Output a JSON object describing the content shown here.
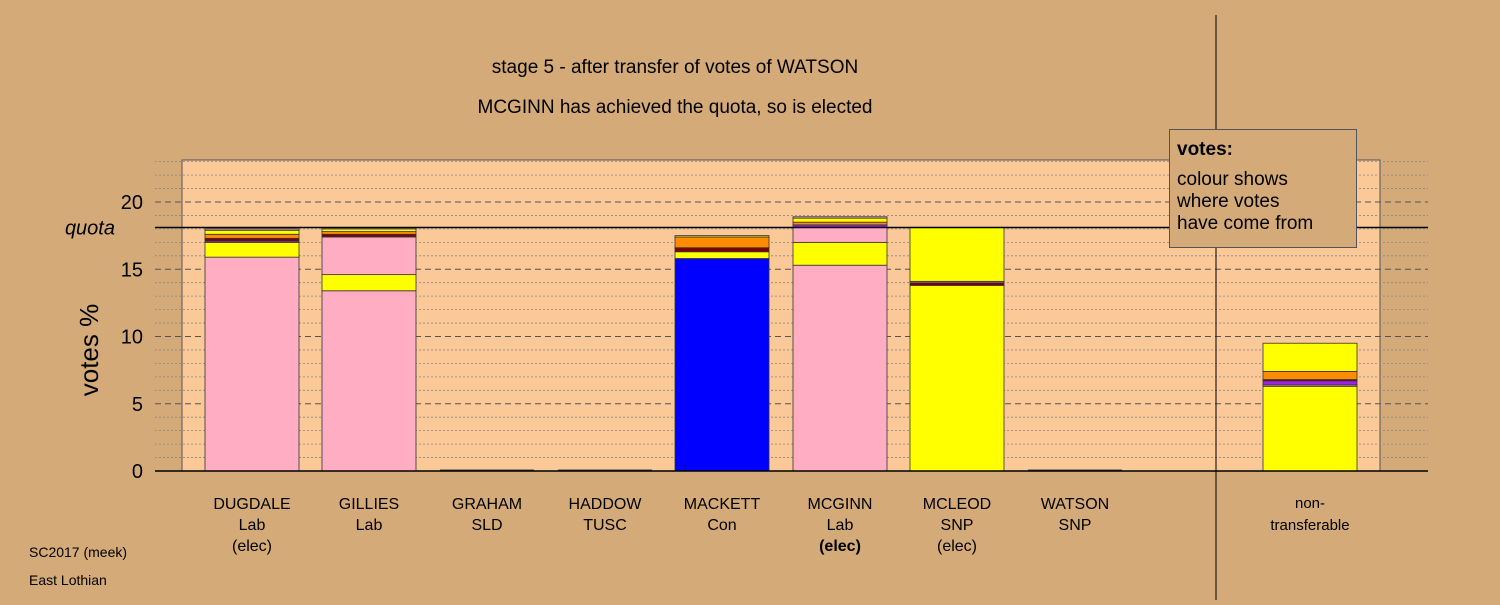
{
  "chart_data": {
    "type": "bar",
    "stacked": true,
    "title": "stage 5 - after transfer of votes of WATSON",
    "subtitle": "MCGINN has achieved the quota, so is elected",
    "xlabel": "",
    "ylabel": "votes %",
    "ylim": [
      0,
      23
    ],
    "yticks": [
      0,
      5,
      10,
      15,
      20
    ],
    "quota": 18.1,
    "quota_label": "quota",
    "grid": true,
    "legend_position": "top-right",
    "legend": {
      "title": "votes:",
      "lines": [
        "colour shows",
        "where votes",
        "have come from"
      ]
    },
    "categories": [
      {
        "name": "DUGDALE",
        "party": "Lab",
        "status": "(elec)",
        "status_bold": false
      },
      {
        "name": "GILLIES",
        "party": "Lab",
        "status": "",
        "status_bold": false
      },
      {
        "name": "GRAHAM",
        "party": "SLD",
        "status": "",
        "status_bold": false
      },
      {
        "name": "HADDOW",
        "party": "TUSC",
        "status": "",
        "status_bold": false
      },
      {
        "name": "MACKETT",
        "party": "Con",
        "status": "",
        "status_bold": false
      },
      {
        "name": "MCGINN",
        "party": "Lab",
        "status": "(elec)",
        "status_bold": true
      },
      {
        "name": "MCLEOD",
        "party": "SNP",
        "status": "(elec)",
        "status_bold": false
      },
      {
        "name": "WATSON",
        "party": "SNP",
        "status": "",
        "status_bold": false
      }
    ],
    "nontransferable": {
      "label_line1": "non-",
      "label_line2": "transferable"
    },
    "bars": [
      [
        {
          "color": "#ffadc3",
          "value": 15.9
        },
        {
          "color": "#ffff00",
          "value": 1.1
        },
        {
          "color": "#a020f0",
          "value": 0.1
        },
        {
          "color": "#800000",
          "value": 0.2
        },
        {
          "color": "#ff8c00",
          "value": 0.3
        },
        {
          "color": "#ffff00",
          "value": 0.3
        },
        {
          "color": "#ffadc3",
          "value": 0.1
        }
      ],
      [
        {
          "color": "#ffadc3",
          "value": 13.4
        },
        {
          "color": "#ffff00",
          "value": 1.2
        },
        {
          "color": "#ffadc3",
          "value": 2.8
        },
        {
          "color": "#800000",
          "value": 0.2
        },
        {
          "color": "#ff8c00",
          "value": 0.2
        },
        {
          "color": "#ffff00",
          "value": 0.2
        },
        {
          "color": "#ffadc3",
          "value": 0.1
        }
      ],
      [],
      [],
      [
        {
          "color": "#0000ff",
          "value": 15.8
        },
        {
          "color": "#ffff00",
          "value": 0.5
        },
        {
          "color": "#800000",
          "value": 0.3
        },
        {
          "color": "#ff8c00",
          "value": 0.8
        },
        {
          "color": "#ffff00",
          "value": 0.1
        }
      ],
      [
        {
          "color": "#ffadc3",
          "value": 15.3
        },
        {
          "color": "#ffff00",
          "value": 1.7
        },
        {
          "color": "#ffadc3",
          "value": 1.1
        },
        {
          "color": "#a020f0",
          "value": 0.2
        },
        {
          "color": "#ff8c00",
          "value": 0.2
        },
        {
          "color": "#ffff00",
          "value": 0.3
        },
        {
          "color": "#ffadc3",
          "value": 0.1
        }
      ],
      [
        {
          "color": "#ffff00",
          "value": 13.8
        },
        {
          "color": "#800000",
          "value": 0.2
        },
        {
          "color": "#ffadc3",
          "value": 0.1
        },
        {
          "color": "#ffff00",
          "value": 4.0
        }
      ],
      [],
      [
        {
          "color": "#ffff00",
          "value": 6.3
        },
        {
          "color": "#ffadc3",
          "value": 0.1
        },
        {
          "color": "#a020f0",
          "value": 0.3
        },
        {
          "color": "#800000",
          "value": 0.1
        },
        {
          "color": "#ff8c00",
          "value": 0.6
        },
        {
          "color": "#ffff00",
          "value": 2.1
        }
      ]
    ]
  },
  "footer": {
    "line1": "SC2017 (meek)",
    "line2": "East Lothian"
  }
}
